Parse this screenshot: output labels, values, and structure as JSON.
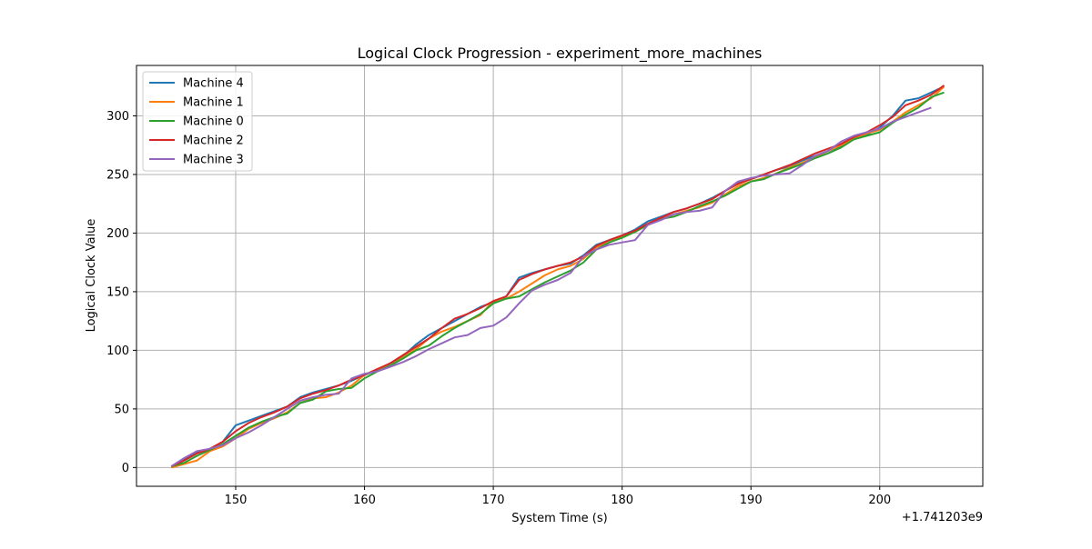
{
  "chart_data": {
    "type": "line",
    "title": "Logical Clock Progression - experiment_more_machines",
    "xlabel": "System Time (s)",
    "ylabel": "Logical Clock Value",
    "x_offset_label": "+1.741203e9",
    "xlim": [
      142.3,
      208.0
    ],
    "ylim": [
      -16,
      343
    ],
    "xticks": [
      150,
      160,
      170,
      180,
      190,
      200
    ],
    "yticks": [
      0,
      50,
      100,
      150,
      200,
      250,
      300
    ],
    "grid": true,
    "legend_position": "top-left",
    "series": [
      {
        "name": "Machine 4",
        "color": "#1f77b4",
        "x": [
          145,
          146,
          147,
          148,
          149,
          150,
          151,
          152,
          153,
          154,
          155,
          156,
          157,
          158,
          159,
          160,
          161,
          162,
          163,
          164,
          165,
          166,
          167,
          168,
          169,
          170,
          171,
          172,
          173,
          174,
          175,
          176,
          177,
          178,
          179,
          180,
          181,
          182,
          183,
          184,
          185,
          186,
          187,
          188,
          189,
          190,
          191,
          192,
          193,
          194,
          195,
          196,
          197,
          198,
          199,
          200,
          201,
          202,
          203,
          204,
          205
        ],
        "y": [
          1,
          7,
          13,
          16,
          22,
          36,
          40,
          44,
          48,
          52,
          60,
          64,
          67,
          70,
          74,
          79,
          83,
          89,
          95,
          105,
          113,
          119,
          125,
          131,
          137,
          141,
          146,
          162,
          166,
          169,
          172,
          174,
          181,
          190,
          194,
          198,
          203,
          210,
          214,
          218,
          221,
          225,
          230,
          236,
          243,
          246,
          250,
          254,
          257,
          262,
          266,
          270,
          274,
          280,
          284,
          290,
          300,
          313,
          315,
          320,
          325
        ]
      },
      {
        "name": "Machine 1",
        "color": "#ff7f0e",
        "x": [
          145,
          146,
          147,
          148,
          149,
          150,
          151,
          152,
          153,
          154,
          155,
          156,
          157,
          158,
          159,
          160,
          161,
          162,
          163,
          164,
          165,
          166,
          167,
          168,
          169,
          170,
          171,
          172,
          173,
          174,
          175,
          176,
          177,
          178,
          179,
          180,
          181,
          182,
          183,
          184,
          185,
          186,
          187,
          188,
          189,
          190,
          191,
          192,
          193,
          194,
          195,
          196,
          197,
          198,
          199,
          200,
          201,
          202,
          203,
          204,
          205
        ],
        "y": [
          0,
          3,
          6,
          14,
          18,
          25,
          33,
          38,
          42,
          47,
          55,
          59,
          60,
          64,
          70,
          79,
          84,
          87,
          94,
          101,
          110,
          116,
          120,
          125,
          130,
          142,
          144,
          150,
          157,
          164,
          169,
          172,
          178,
          188,
          192,
          197,
          201,
          207,
          212,
          216,
          219,
          222,
          226,
          233,
          240,
          244,
          247,
          251,
          256,
          260,
          265,
          270,
          275,
          281,
          285,
          288,
          295,
          303,
          309,
          315,
          325
        ]
      },
      {
        "name": "Machine 0",
        "color": "#2ca02c",
        "x": [
          145,
          146,
          147,
          148,
          149,
          150,
          151,
          152,
          153,
          154,
          155,
          156,
          157,
          158,
          159,
          160,
          161,
          162,
          163,
          164,
          165,
          166,
          167,
          168,
          169,
          170,
          171,
          172,
          173,
          174,
          175,
          176,
          177,
          178,
          179,
          180,
          181,
          182,
          183,
          184,
          185,
          186,
          187,
          188,
          189,
          190,
          191,
          192,
          193,
          194,
          195,
          196,
          197,
          198,
          199,
          200,
          201,
          202,
          203,
          204,
          205
        ],
        "y": [
          1,
          4,
          10,
          15,
          20,
          27,
          34,
          39,
          43,
          46,
          55,
          58,
          65,
          67,
          68,
          76,
          82,
          87,
          93,
          100,
          104,
          112,
          119,
          125,
          131,
          140,
          144,
          146,
          152,
          158,
          163,
          168,
          175,
          186,
          192,
          196,
          201,
          207,
          212,
          214,
          218,
          223,
          227,
          232,
          238,
          244,
          246,
          251,
          255,
          259,
          264,
          268,
          273,
          280,
          283,
          286,
          294,
          301,
          307,
          316,
          320
        ]
      },
      {
        "name": "Machine 2",
        "color": "#d62728",
        "x": [
          145,
          146,
          147,
          148,
          149,
          150,
          151,
          152,
          153,
          154,
          155,
          156,
          157,
          158,
          159,
          160,
          161,
          162,
          163,
          164,
          165,
          166,
          167,
          168,
          169,
          170,
          171,
          172,
          173,
          174,
          175,
          176,
          177,
          178,
          179,
          180,
          181,
          182,
          183,
          184,
          185,
          186,
          187,
          188,
          189,
          190,
          191,
          192,
          193,
          194,
          195,
          196,
          197,
          198,
          199,
          200,
          201,
          202,
          203,
          204,
          205
        ],
        "y": [
          1,
          6,
          12,
          16,
          22,
          31,
          38,
          43,
          47,
          52,
          59,
          63,
          66,
          70,
          75,
          79,
          84,
          89,
          96,
          103,
          110,
          119,
          127,
          131,
          136,
          142,
          146,
          160,
          165,
          169,
          172,
          175,
          180,
          189,
          194,
          198,
          202,
          208,
          213,
          218,
          221,
          225,
          229,
          236,
          242,
          246,
          250,
          254,
          258,
          263,
          268,
          272,
          276,
          282,
          286,
          292,
          299,
          309,
          313,
          318,
          326
        ]
      },
      {
        "name": "Machine 3",
        "color": "#9467bd",
        "x": [
          145,
          146,
          147,
          148,
          149,
          150,
          151,
          152,
          153,
          154,
          155,
          156,
          157,
          158,
          159,
          160,
          161,
          162,
          163,
          164,
          165,
          166,
          167,
          168,
          169,
          170,
          171,
          172,
          173,
          174,
          175,
          176,
          177,
          178,
          179,
          180,
          181,
          182,
          183,
          184,
          185,
          186,
          187,
          188,
          189,
          190,
          191,
          192,
          193,
          194,
          195,
          196,
          197,
          198,
          199,
          200,
          201,
          202,
          203,
          204
        ],
        "y": [
          1,
          8,
          14,
          16,
          19,
          25,
          30,
          36,
          43,
          50,
          57,
          60,
          62,
          63,
          76,
          80,
          82,
          86,
          90,
          95,
          101,
          106,
          111,
          113,
          119,
          121,
          128,
          140,
          151,
          156,
          160,
          166,
          180,
          186,
          190,
          192,
          194,
          207,
          211,
          216,
          218,
          219,
          222,
          236,
          244,
          247,
          249,
          250,
          251,
          258,
          266,
          270,
          278,
          283,
          286,
          289,
          295,
          299,
          303,
          307
        ]
      }
    ]
  }
}
